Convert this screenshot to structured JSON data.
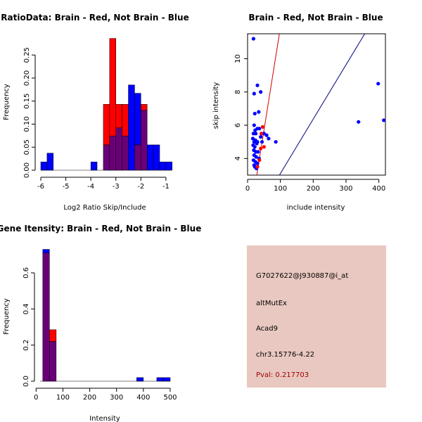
{
  "colors": {
    "brain": "#ff0000",
    "not_brain": "#0000ff",
    "overlap": "#6a0078",
    "info_bg": "#e8c8c0",
    "pval_text": "#a00000",
    "diag_red": "#d00000",
    "diag_blue": "#000080"
  },
  "info_box": {
    "probe": "G7027622@J930887@i_at",
    "event": "altMutEx",
    "gene": "Acad9",
    "location": "chr3.15776-4.22",
    "pval": "Pval: 0.217703"
  },
  "chart_data": [
    {
      "id": "ratio",
      "type": "bar",
      "title": "RatioData: Brain - Red, Not Brain - Blue",
      "xlabel": "Log2 Ratio Skip/Include",
      "ylabel": "Frequency",
      "xlim": [
        -6.0,
        -0.8
      ],
      "ylim": [
        0,
        0.29
      ],
      "xticks": [
        -6,
        -5,
        -4,
        -3,
        -2,
        -1
      ],
      "xtick_labels": [
        "-6",
        "-5",
        "-4",
        "-3",
        "-2",
        "-1"
      ],
      "yticks": [
        0,
        0.05,
        0.1,
        0.15,
        0.2,
        0.25
      ],
      "ytick_labels": [
        "0.00",
        "0.05",
        "0.10",
        "0.15",
        "0.20",
        "0.25"
      ],
      "bin_width": 0.25,
      "series": [
        {
          "name": "Not Brain",
          "bins": [
            [
              -6.0,
              0.018
            ],
            [
              -5.75,
              0.037
            ],
            [
              -4.0,
              0.018
            ],
            [
              -3.5,
              0.055
            ],
            [
              -3.25,
              0.074
            ],
            [
              -3.0,
              0.092
            ],
            [
              -2.75,
              0.074
            ],
            [
              -2.5,
              0.185
            ],
            [
              -2.25,
              0.167
            ],
            [
              -2.0,
              0.13
            ],
            [
              -1.75,
              0.055
            ],
            [
              -1.5,
              0.055
            ],
            [
              -1.25,
              0.018
            ],
            [
              -1.0,
              0.018
            ]
          ]
        },
        {
          "name": "Brain",
          "bins": [
            [
              -3.5,
              0.143
            ],
            [
              -3.25,
              0.286
            ],
            [
              -3.0,
              0.143
            ],
            [
              -2.75,
              0.143
            ],
            [
              -2.25,
              0.055
            ],
            [
              -2.0,
              0.143
            ]
          ]
        }
      ]
    },
    {
      "id": "scatter",
      "type": "scatter",
      "title": "Brain - Red, Not Brain - Blue",
      "xlabel": "include intensity",
      "ylabel": "skip intensity",
      "xlim": [
        0,
        420
      ],
      "ylim": [
        3.0,
        11.5
      ],
      "xticks": [
        0,
        100,
        200,
        300,
        400
      ],
      "xtick_labels": [
        "0",
        "100",
        "200",
        "300",
        "400"
      ],
      "yticks": [
        4,
        6,
        8,
        10
      ],
      "ytick_labels": [
        "4",
        "6",
        "8",
        "10"
      ],
      "lines": [
        {
          "name": "brain-fit",
          "color_key": "diag_red",
          "points": [
            [
              28,
              3.0
            ],
            [
              97,
              11.5
            ]
          ]
        },
        {
          "name": "not-brain-fit",
          "color_key": "diag_blue",
          "points": [
            [
              97,
              3.0
            ],
            [
              357,
              11.5
            ]
          ]
        }
      ],
      "series": [
        {
          "name": "Not Brain",
          "color_key": "not_brain",
          "points": [
            [
              18,
              11.2
            ],
            [
              30,
              8.4
            ],
            [
              40,
              8.0
            ],
            [
              20,
              7.9
            ],
            [
              22,
              6.7
            ],
            [
              34,
              6.8
            ],
            [
              20,
              6.0
            ],
            [
              23,
              5.7
            ],
            [
              30,
              5.8
            ],
            [
              36,
              5.8
            ],
            [
              18,
              5.5
            ],
            [
              25,
              5.5
            ],
            [
              40,
              5.3
            ],
            [
              50,
              5.5
            ],
            [
              58,
              5.4
            ],
            [
              16,
              5.2
            ],
            [
              20,
              5.0
            ],
            [
              24,
              5.1
            ],
            [
              30,
              5.0
            ],
            [
              44,
              5.0
            ],
            [
              64,
              5.2
            ],
            [
              86,
              5.0
            ],
            [
              17,
              4.8
            ],
            [
              22,
              4.7
            ],
            [
              28,
              4.9
            ],
            [
              19,
              4.5
            ],
            [
              25,
              4.4
            ],
            [
              32,
              4.4
            ],
            [
              20,
              4.2
            ],
            [
              26,
              4.1
            ],
            [
              35,
              4.0
            ],
            [
              18,
              3.9
            ],
            [
              24,
              3.8
            ],
            [
              20,
              3.6
            ],
            [
              30,
              3.7
            ],
            [
              22,
              3.5
            ],
            [
              27,
              3.4
            ],
            [
              338,
              6.2
            ],
            [
              398,
              8.5
            ],
            [
              415,
              6.3
            ]
          ]
        },
        {
          "name": "Brain",
          "color_key": "brain",
          "points": [
            [
              46,
              5.9
            ],
            [
              42,
              5.5
            ],
            [
              50,
              4.7
            ],
            [
              40,
              4.6
            ],
            [
              36,
              3.9
            ],
            [
              30,
              3.5
            ]
          ]
        }
      ]
    },
    {
      "id": "gene",
      "type": "bar",
      "title": "Gene Itensity: Brain - Red, Not Brain - Blue",
      "xlabel": "Intensity",
      "ylabel": "Frequency",
      "xlim": [
        15,
        500
      ],
      "ylim": [
        0,
        0.74
      ],
      "xticks": [
        0,
        100,
        200,
        300,
        400,
        500
      ],
      "xtick_labels": [
        "0",
        "100",
        "200",
        "300",
        "400",
        "500"
      ],
      "yticks": [
        0,
        0.2,
        0.4,
        0.6
      ],
      "ytick_labels": [
        "0.0",
        "0.2",
        "0.4",
        "0.6"
      ],
      "bin_width": 25,
      "series": [
        {
          "name": "Not Brain",
          "bins": [
            [
              25,
              0.73
            ],
            [
              50,
              0.22
            ],
            [
              375,
              0.02
            ],
            [
              450,
              0.02
            ],
            [
              475,
              0.02
            ]
          ]
        },
        {
          "name": "Brain",
          "bins": [
            [
              25,
              0.71
            ],
            [
              50,
              0.285
            ]
          ]
        }
      ]
    }
  ]
}
